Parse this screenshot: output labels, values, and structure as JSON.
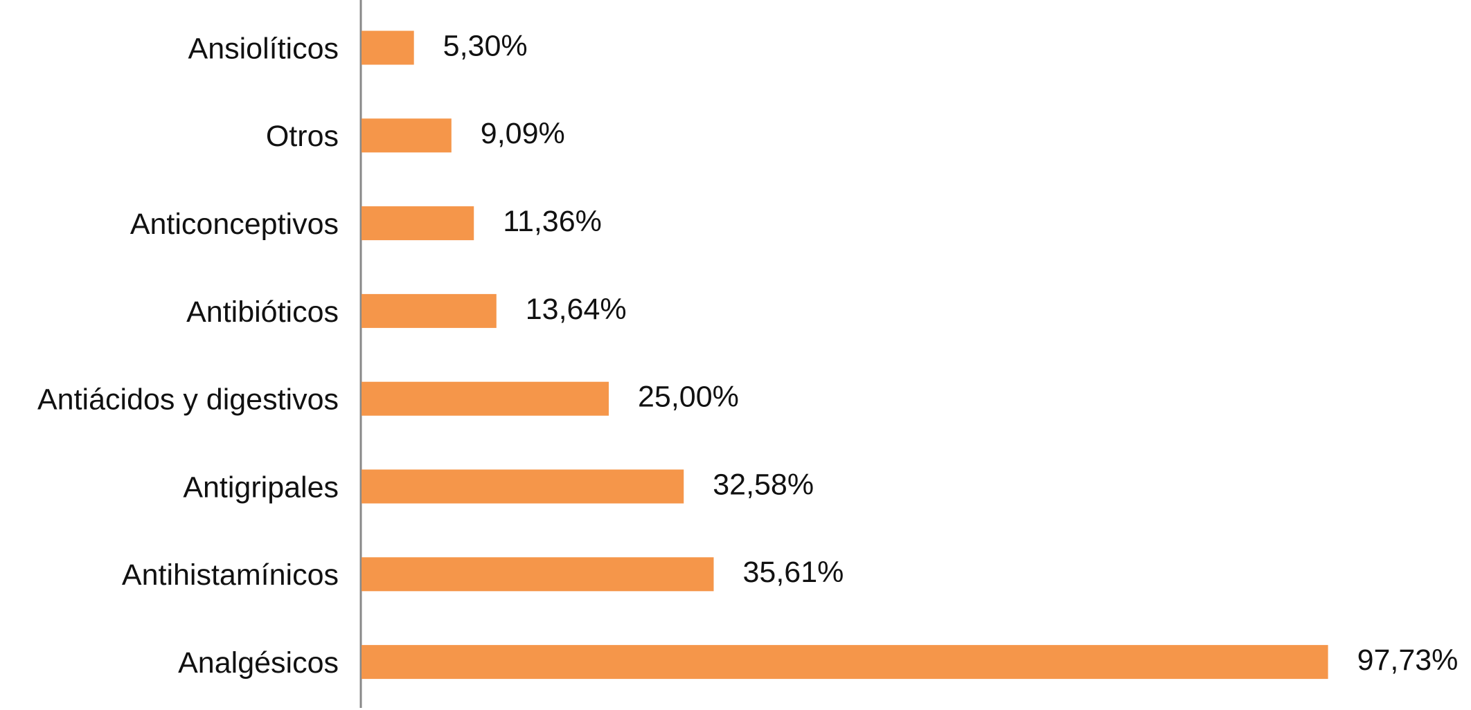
{
  "chart_data": {
    "type": "hbar",
    "categories": [
      "Ansiolíticos",
      "Otros",
      "Anticonceptivos",
      "Antibióticos",
      "Antiácidos y digestivos",
      "Antigripales",
      "Antihistamínicos",
      "Analgésicos"
    ],
    "values": [
      5.3,
      9.09,
      11.36,
      13.64,
      25.0,
      32.58,
      35.61,
      97.73
    ],
    "value_labels": [
      "5,30%",
      "9,09%",
      "11,36%",
      "13,64%",
      "25,00%",
      "32,58%",
      "35,61%",
      "97,73%"
    ],
    "color": "#f5964a"
  }
}
